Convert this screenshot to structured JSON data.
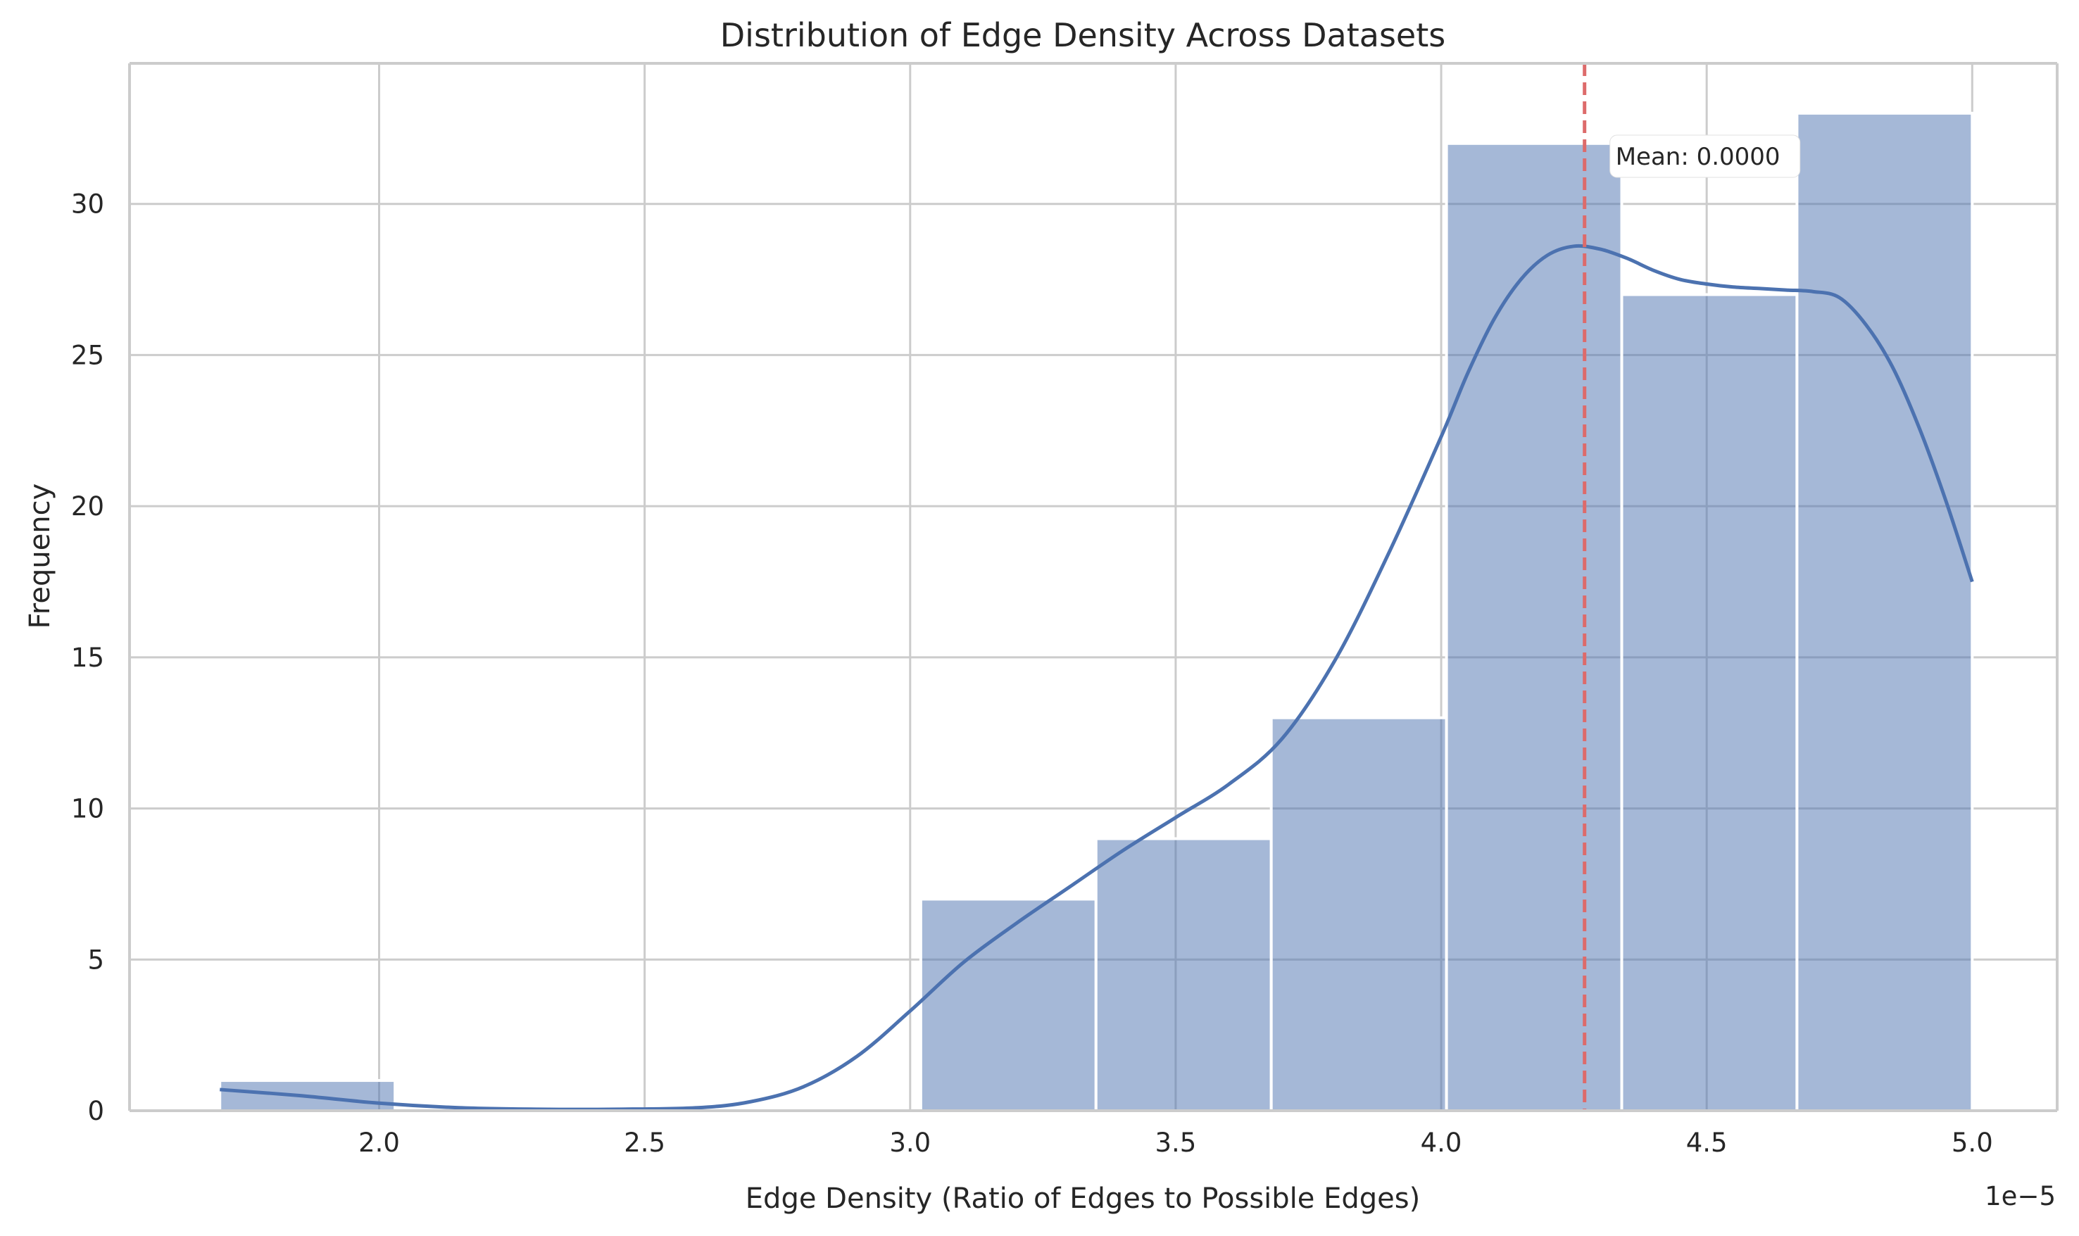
{
  "chart_data": {
    "type": "bar",
    "title": "Distribution of Edge Density Across Datasets",
    "xlabel": "Edge Density (Ratio of Edges to Possible Edges)",
    "ylabel": "Frequency",
    "x_offset_label": "1e−5",
    "xlim": [
      1.53,
      5.16
    ],
    "ylim": [
      0,
      34.65
    ],
    "x_ticks": [
      2.0,
      2.5,
      3.0,
      3.5,
      4.0,
      4.5,
      5.0
    ],
    "x_tick_labels": [
      "2.0",
      "2.5",
      "3.0",
      "3.5",
      "4.0",
      "4.5",
      "5.0"
    ],
    "y_ticks": [
      0,
      5,
      10,
      15,
      20,
      25,
      30
    ],
    "y_tick_labels": [
      "0",
      "5",
      "10",
      "15",
      "20",
      "25",
      "30"
    ],
    "bin_edges": [
      1.7,
      2.03,
      2.36,
      2.69,
      3.02,
      3.35,
      3.68,
      4.01,
      4.34,
      4.67,
      5.0
    ],
    "counts": [
      1,
      0,
      0,
      0,
      7,
      9,
      13,
      32,
      27,
      33
    ],
    "kde": {
      "x": [
        1.7,
        1.85,
        2.0,
        2.15,
        2.3,
        2.45,
        2.6,
        2.7,
        2.8,
        2.9,
        3.0,
        3.1,
        3.2,
        3.3,
        3.4,
        3.5,
        3.6,
        3.7,
        3.8,
        3.9,
        4.0,
        4.05,
        4.1,
        4.15,
        4.2,
        4.25,
        4.3,
        4.35,
        4.4,
        4.45,
        4.5,
        4.55,
        4.6,
        4.65,
        4.7,
        4.75,
        4.8,
        4.85,
        4.9,
        4.95,
        5.0
      ],
      "y": [
        0.7,
        0.5,
        0.25,
        0.1,
        0.05,
        0.05,
        0.1,
        0.3,
        0.8,
        1.8,
        3.3,
        4.9,
        6.2,
        7.4,
        8.6,
        9.7,
        10.8,
        12.3,
        14.9,
        18.4,
        22.3,
        24.4,
        26.2,
        27.5,
        28.3,
        28.6,
        28.5,
        28.2,
        27.8,
        27.5,
        27.35,
        27.25,
        27.2,
        27.15,
        27.1,
        26.9,
        26.0,
        24.6,
        22.6,
        20.2,
        17.5
      ]
    },
    "mean_line": {
      "x": 4.27,
      "label": "Mean: 0.0000"
    },
    "grid": true,
    "colors": {
      "bar": "#4c72b0",
      "kde": "#4c72b0",
      "mean_line": "#dd6b6b",
      "grid": "#cccccc",
      "spine": "#cccccc"
    }
  }
}
